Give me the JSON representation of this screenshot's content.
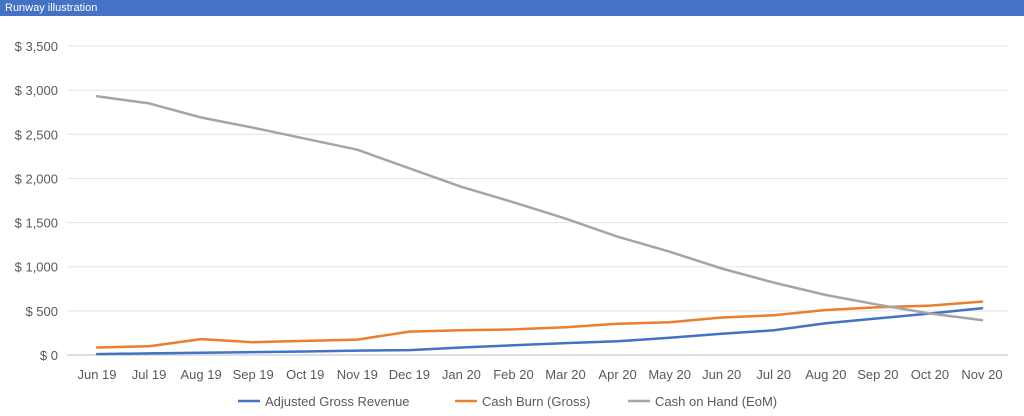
{
  "header": {
    "title": "Runway illustration"
  },
  "chart_data": {
    "type": "line",
    "title": "",
    "xlabel": "",
    "ylabel": "",
    "y_prefix": "$ ",
    "ylim": [
      0,
      3500
    ],
    "yticks": [
      0,
      500,
      1000,
      1500,
      2000,
      2500,
      3000,
      3500
    ],
    "grid": "horizontal",
    "legend": "bottom",
    "categories": [
      "Jun 19",
      "Jul 19",
      "Aug 19",
      "Sep 19",
      "Oct 19",
      "Nov 19",
      "Dec 19",
      "Jan 20",
      "Feb 20",
      "Mar 20",
      "Apr 20",
      "May 20",
      "Jun 20",
      "Jul 20",
      "Aug 20",
      "Sep 20",
      "Oct 20",
      "Nov 20"
    ],
    "series": [
      {
        "name": "Adjusted Gross Revenue",
        "color": "#4472C4",
        "values": [
          10,
          18,
          26,
          33,
          40,
          50,
          55,
          85,
          110,
          135,
          155,
          195,
          240,
          280,
          360,
          415,
          470,
          530
        ]
      },
      {
        "name": "Cash Burn (Gross)",
        "color": "#ED7D31",
        "values": [
          85,
          100,
          180,
          145,
          160,
          175,
          265,
          280,
          290,
          315,
          355,
          370,
          425,
          450,
          510,
          540,
          560,
          605
        ]
      },
      {
        "name": "Cash on Hand (EoM)",
        "color": "#A5A5A5",
        "values": [
          2930,
          2850,
          2690,
          2575,
          2450,
          2325,
          2115,
          1905,
          1730,
          1545,
          1340,
          1170,
          980,
          820,
          680,
          570,
          470,
          395
        ]
      }
    ]
  }
}
